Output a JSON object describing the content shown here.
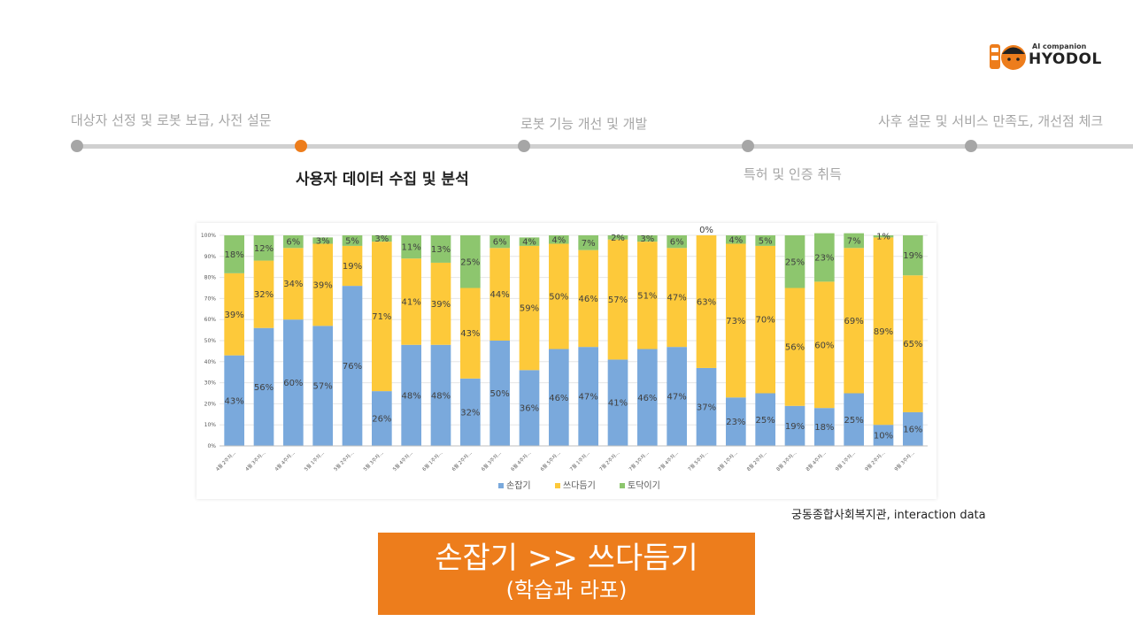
{
  "header": {
    "logo_sub": "AI companion",
    "logo_name": "HYODOL"
  },
  "timeline": {
    "steps": [
      {
        "label": "대상자 선정 및 로봇 보급, 사전 설문"
      },
      {
        "label": "사용자 데이터 수집 및 분석"
      },
      {
        "label": "로봇 기능 개선 및 개발"
      },
      {
        "label": "특허 및 인증 취득"
      },
      {
        "label": "사후 설문 및 서비스 만족도, 개선점 체크"
      }
    ],
    "active_index": 1
  },
  "chart_data": {
    "type": "bar",
    "stacked": true,
    "percent": true,
    "categories": [
      "4월 2주차...",
      "4월 3주차...",
      "4월 4주차...",
      "5월 1주차...",
      "5월 2주차...",
      "5월 3주차...",
      "5월 4주차...",
      "6월 1주차...",
      "6월 2주차...",
      "6월 3주차...",
      "6월 4주차...",
      "6월 5주차...",
      "7월 1주차...",
      "7월 2주차...",
      "7월 3주차...",
      "7월 4주차...",
      "7월 5주차...",
      "8월 1주차...",
      "8월 2주차...",
      "8월 3주차...",
      "8월 4주차...",
      "9월 1주차...",
      "9월 2주차...",
      "9월 3주차..."
    ],
    "series": [
      {
        "name": "손잡기",
        "color": "#7aa9dc",
        "values": [
          43,
          56,
          60,
          57,
          76,
          26,
          48,
          48,
          32,
          50,
          36,
          46,
          47,
          41,
          46,
          47,
          37,
          23,
          25,
          19,
          18,
          25,
          10,
          16
        ]
      },
      {
        "name": "쓰다듬기",
        "color": "#fdc93a",
        "values": [
          39,
          32,
          34,
          39,
          19,
          71,
          41,
          39,
          43,
          44,
          59,
          50,
          46,
          57,
          51,
          47,
          63,
          73,
          70,
          56,
          60,
          69,
          89,
          65
        ]
      },
      {
        "name": "토닥이기",
        "color": "#8dc66e",
        "values": [
          18,
          12,
          6,
          3,
          5,
          3,
          11,
          13,
          25,
          6,
          4,
          4,
          7,
          2,
          3,
          6,
          0,
          4,
          5,
          25,
          23,
          7,
          1,
          19
        ]
      }
    ],
    "yticks": [
      "0%",
      "10%",
      "20%",
      "30%",
      "40%",
      "50%",
      "60%",
      "70%",
      "80%",
      "90%",
      "100%"
    ],
    "ylim": [
      0,
      100
    ],
    "legend": "bottom"
  },
  "source": "궁동종합사회복지관, interaction data",
  "banner": {
    "line1": "손잡기 >> 쓰다듬기",
    "line2": "(학습과 라포)"
  },
  "colors": {
    "accent": "#ed7d1c",
    "timeline_inactive": "#a6a6a6"
  }
}
